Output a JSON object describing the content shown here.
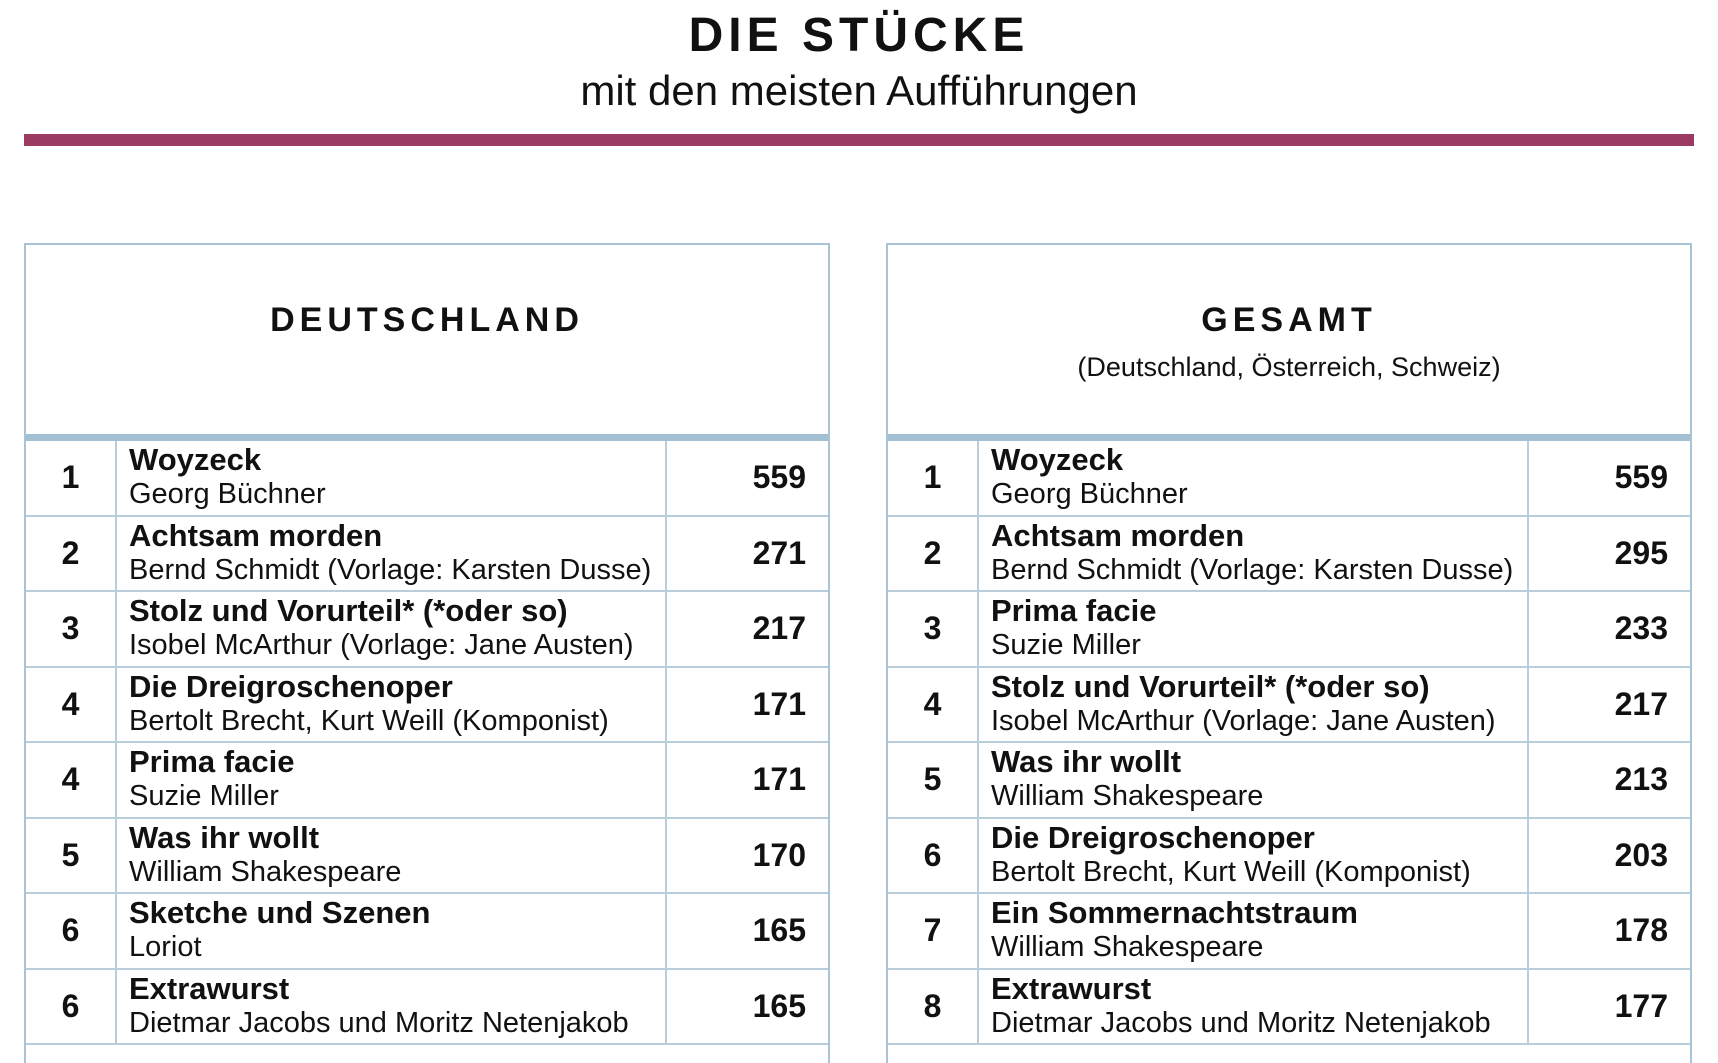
{
  "header": {
    "title": "DIE STÜCKE",
    "subtitle": "mit den meisten Aufführungen",
    "accent_color": "#9b3a62"
  },
  "left_table": {
    "title": "DEUTSCHLAND",
    "subtitle": "",
    "rows": [
      {
        "rank": "1",
        "title": "Woyzeck",
        "author": "Georg Büchner",
        "count": "559"
      },
      {
        "rank": "2",
        "title": "Achtsam morden",
        "author": "Bernd Schmidt (Vorlage: Karsten Dusse)",
        "count": "271"
      },
      {
        "rank": "3",
        "title": "Stolz und Vorurteil* (*oder so)",
        "author": "Isobel McArthur (Vorlage: Jane Austen)",
        "count": "217"
      },
      {
        "rank": "4",
        "title": "Die Dreigroschenoper",
        "author": "Bertolt Brecht, Kurt Weill (Komponist)",
        "count": "171"
      },
      {
        "rank": "4",
        "title": "Prima facie",
        "author": "Suzie Miller",
        "count": "171"
      },
      {
        "rank": "5",
        "title": "Was ihr wollt",
        "author": "William Shakespeare",
        "count": "170"
      },
      {
        "rank": "6",
        "title": "Sketche und Szenen",
        "author": "Loriot",
        "count": "165"
      },
      {
        "rank": "6",
        "title": "Extrawurst",
        "author": "Dietmar Jacobs und Moritz Netenjakob",
        "count": "165"
      }
    ]
  },
  "right_table": {
    "title": "GESAMT",
    "subtitle": "(Deutschland, Österreich, Schweiz)",
    "rows": [
      {
        "rank": "1",
        "title": "Woyzeck",
        "author": "Georg Büchner",
        "count": "559"
      },
      {
        "rank": "2",
        "title": "Achtsam morden",
        "author": "Bernd Schmidt (Vorlage: Karsten Dusse)",
        "count": "295"
      },
      {
        "rank": "3",
        "title": "Prima facie",
        "author": "Suzie Miller",
        "count": "233"
      },
      {
        "rank": "4",
        "title": "Stolz und Vorurteil* (*oder so)",
        "author": "Isobel McArthur (Vorlage: Jane Austen)",
        "count": "217"
      },
      {
        "rank": "5",
        "title": "Was ihr wollt",
        "author": "William Shakespeare",
        "count": "213"
      },
      {
        "rank": "6",
        "title": "Die Dreigroschenoper",
        "author": "Bertolt Brecht, Kurt Weill (Komponist)",
        "count": "203"
      },
      {
        "rank": "7",
        "title": "Ein Sommernachtstraum",
        "author": "William Shakespeare",
        "count": "178"
      },
      {
        "rank": "8",
        "title": "Extrawurst",
        "author": "Dietmar Jacobs und Moritz Netenjakob",
        "count": "177"
      }
    ]
  }
}
